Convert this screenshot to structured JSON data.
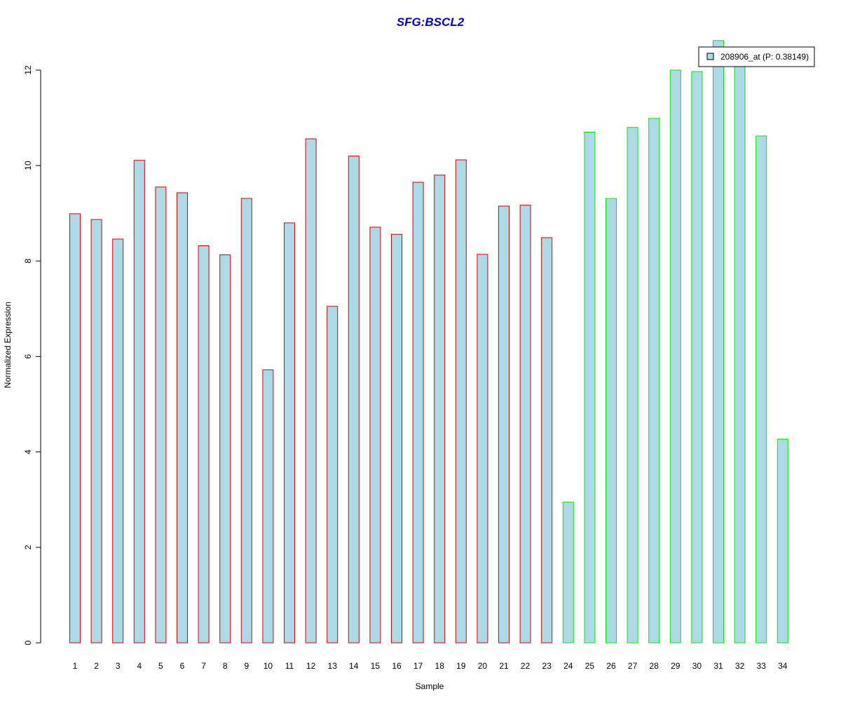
{
  "chart_data": {
    "type": "bar",
    "title": "SFG:BSCL2",
    "xlabel": "Sample",
    "ylabel": "Normalized Expression",
    "categories": [
      "1",
      "2",
      "3",
      "4",
      "5",
      "6",
      "7",
      "8",
      "9",
      "10",
      "11",
      "12",
      "13",
      "14",
      "15",
      "16",
      "17",
      "18",
      "19",
      "20",
      "21",
      "22",
      "23",
      "24",
      "25",
      "26",
      "27",
      "28",
      "29",
      "30",
      "31",
      "32",
      "33",
      "34"
    ],
    "series": [
      {
        "name": "208906_at (P: 0.38149)",
        "values": [
          8.99,
          8.87,
          8.46,
          10.11,
          9.55,
          9.43,
          8.32,
          8.13,
          9.31,
          5.72,
          8.8,
          10.56,
          7.05,
          10.2,
          8.71,
          8.56,
          9.65,
          9.8,
          10.12,
          8.14,
          9.15,
          9.17,
          8.49,
          2.95,
          10.7,
          9.31,
          10.8,
          10.99,
          12.0,
          11.97,
          12.62,
          12.2,
          10.62,
          4.27
        ]
      }
    ],
    "group_sizes": [
      23,
      11
    ],
    "ylim": [
      0,
      12
    ],
    "yticks": [
      0,
      2,
      4,
      6,
      8,
      10,
      12
    ],
    "grid": false,
    "legend_position": "top-right",
    "colors": {
      "title": "#0000cc",
      "bar_fill": "#add8e6",
      "border_group1": "#dd0000",
      "border_group2": "#00ee00",
      "axis": "#000000"
    }
  }
}
